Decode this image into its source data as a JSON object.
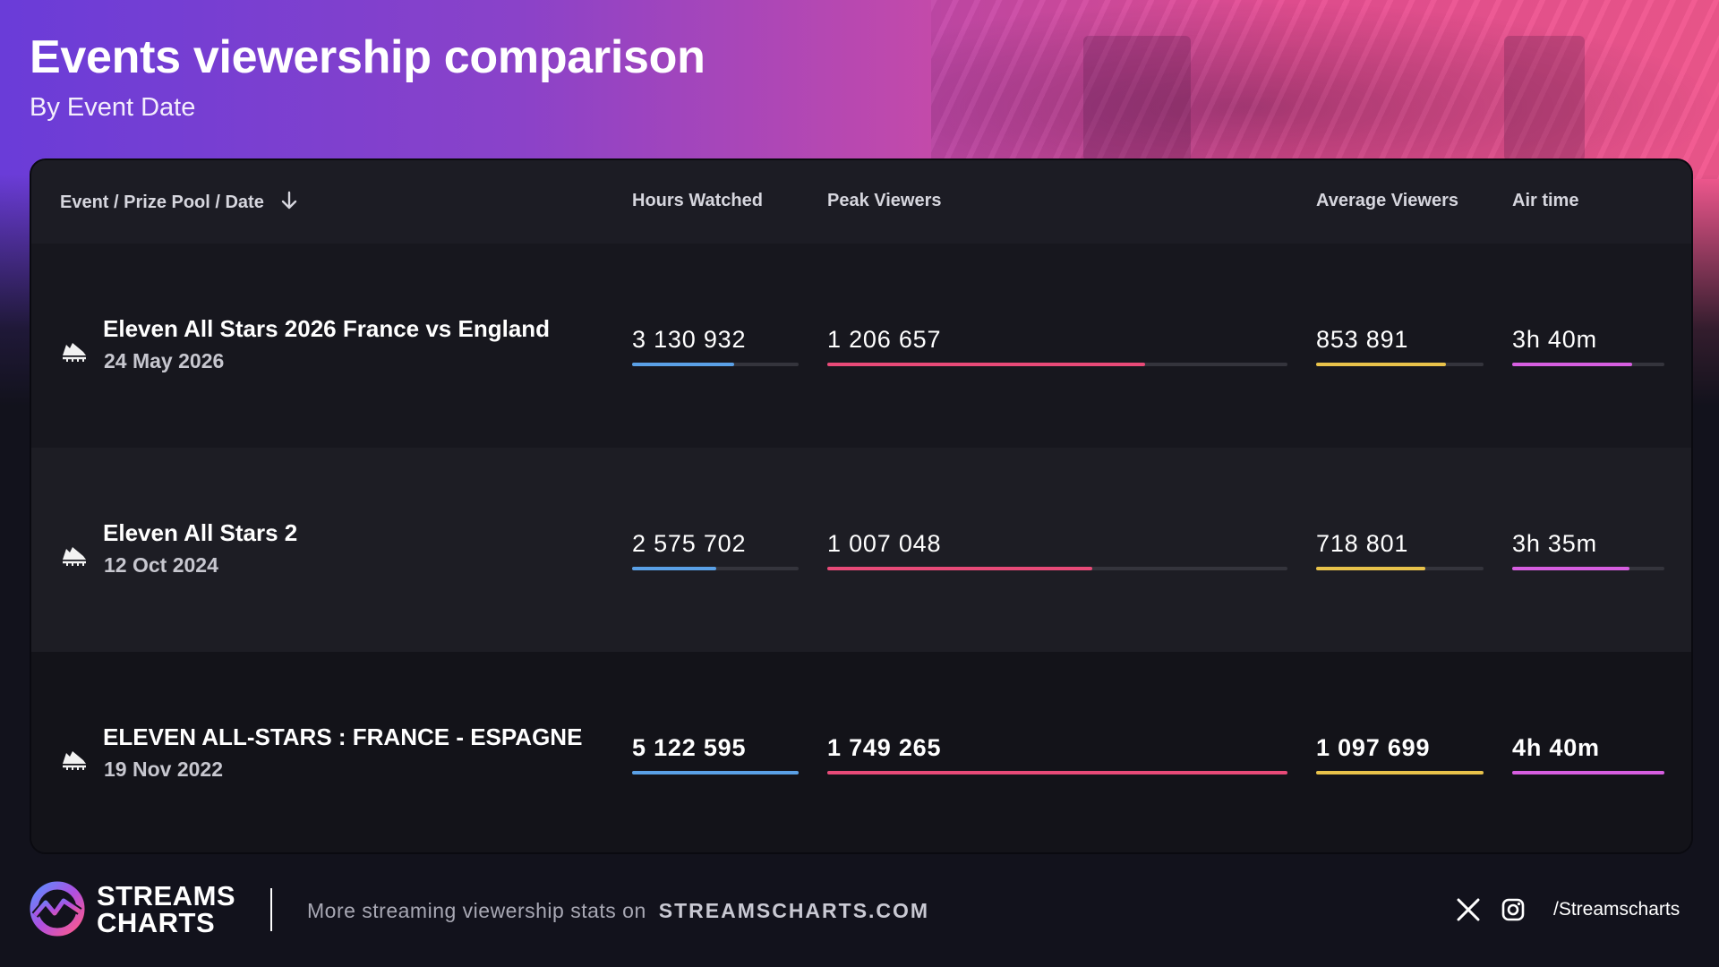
{
  "header": {
    "title": "Events viewership comparison",
    "subtitle": "By Event Date"
  },
  "table": {
    "columns": {
      "event": "Event / Prize Pool / Date",
      "hours": "Hours Watched",
      "peak": "Peak Viewers",
      "avg": "Average Viewers",
      "air": "Air time"
    },
    "sort_icon": "arrow-down-icon",
    "event_icon": "soccer-cleat-icon",
    "bar_colors": {
      "hours": "#5aa0e6",
      "peak": "#e84a78",
      "avg": "#e8c24a",
      "air": "#d65ee0",
      "track": "#34343c"
    },
    "rows": [
      {
        "name": "Eleven All Stars 2026 France vs England",
        "date": "24 May 2026",
        "hours": "3 130 932",
        "peak": "1 206 657",
        "avg": "853 891",
        "air": "3h 40m",
        "levels": {
          "hours": 0.611,
          "peak": 0.69,
          "avg": 0.778,
          "air": 0.786
        }
      },
      {
        "name": "Eleven All Stars 2",
        "date": "12 Oct 2024",
        "hours": "2 575 702",
        "peak": "1 007 048",
        "avg": "718 801",
        "air": "3h 35m",
        "levels": {
          "hours": 0.503,
          "peak": 0.576,
          "avg": 0.655,
          "air": 0.768
        }
      },
      {
        "name": "ELEVEN ALL-STARS : FRANCE - ESPAGNE",
        "date": "19 Nov 2022",
        "hours": "5 122 595",
        "peak": "1 749 265",
        "avg": "1 097 699",
        "air": "4h 40m",
        "levels": {
          "hours": 1.0,
          "peak": 1.0,
          "avg": 1.0,
          "air": 1.0
        }
      }
    ]
  },
  "footer": {
    "logo_line1": "STREAMS",
    "logo_line2": "CHARTS",
    "note": "More streaming viewership stats on",
    "site": "STREAMSCHARTS.COM",
    "social_icons": [
      "x-icon",
      "instagram-icon"
    ],
    "handle": "/Streamscharts"
  }
}
